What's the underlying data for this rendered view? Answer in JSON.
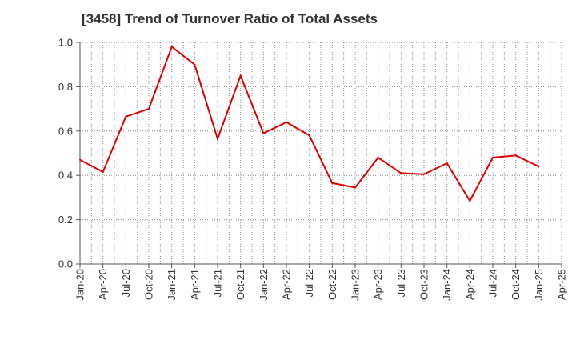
{
  "chart_data": {
    "type": "line",
    "title": "[3458]  Trend of Turnover Ratio of Total Assets",
    "xlabel": "",
    "ylabel": "",
    "x": [
      "Jan-20",
      "Apr-20",
      "Jul-20",
      "Oct-20",
      "Jan-21",
      "Apr-21",
      "Jul-21",
      "Oct-21",
      "Jan-22",
      "Apr-22",
      "Jul-22",
      "Oct-22",
      "Jan-23",
      "Apr-23",
      "Jul-23",
      "Oct-23",
      "Jan-24",
      "Apr-24",
      "Jul-24",
      "Oct-24",
      "Jan-25",
      "Apr-25"
    ],
    "series": [
      {
        "name": "",
        "color": "#dd0000",
        "values": [
          0.47,
          0.415,
          0.665,
          0.7,
          0.98,
          0.9,
          0.565,
          0.85,
          0.59,
          0.64,
          0.58,
          0.365,
          0.345,
          0.48,
          0.41,
          0.405,
          0.455,
          0.285,
          0.48,
          0.49,
          0.44,
          null
        ]
      }
    ],
    "ylim": [
      0,
      1.0
    ],
    "y_ticks": [
      "0.0",
      "0.2",
      "0.4",
      "0.6",
      "0.8",
      "1.0"
    ],
    "y_tick_values": [
      0,
      0.2,
      0.4,
      0.6,
      0.8,
      1.0
    ],
    "grid": true,
    "grid_style": "dotted",
    "legend": "none"
  }
}
